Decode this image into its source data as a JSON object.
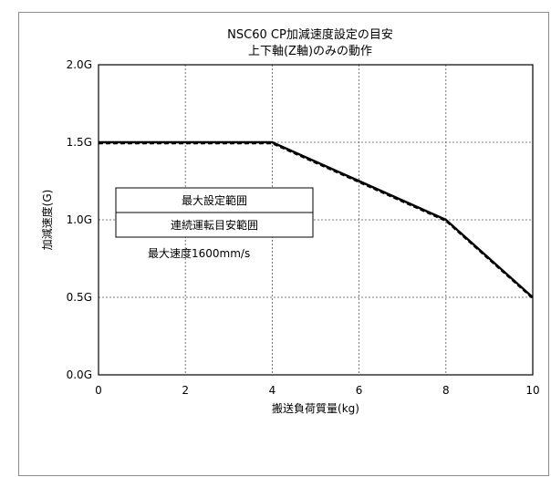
{
  "chart_data": {
    "type": "line",
    "title": "NSC60 CP加減速度設定の目安",
    "subtitle": "上下軸(Z軸)のみの動作",
    "xlabel": "搬送負荷質量(kg)",
    "ylabel": "加減速度(G)",
    "xlim": [
      0,
      10
    ],
    "ylim": [
      0,
      2
    ],
    "x_ticks": [
      "0",
      "2",
      "4",
      "6",
      "8",
      "10"
    ],
    "y_ticks": [
      "0.0G",
      "0.5G",
      "1.0G",
      "1.5G",
      "2.0G"
    ],
    "grid": true,
    "series": [
      {
        "name": "最大設定範囲",
        "style": "solid",
        "x": [
          0,
          4,
          8,
          10
        ],
        "y": [
          1.5,
          1.5,
          1.0,
          0.5
        ]
      },
      {
        "name": "連続運転目安範囲",
        "style": "dashed",
        "x": [
          0,
          4,
          8,
          10
        ],
        "y": [
          1.5,
          1.5,
          1.0,
          0.5
        ]
      }
    ],
    "annotation": "最大速度1600mm/s"
  }
}
